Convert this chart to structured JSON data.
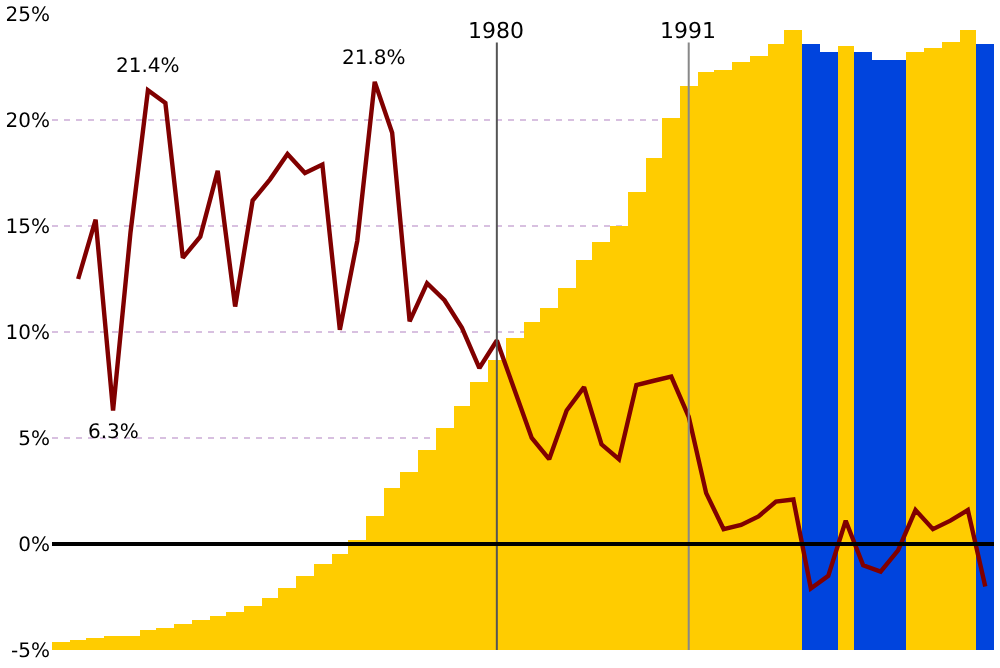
{
  "chart_data": {
    "type": "bar",
    "x": [
      1955,
      1956,
      1957,
      1958,
      1959,
      1960,
      1961,
      1962,
      1963,
      1964,
      1965,
      1966,
      1967,
      1968,
      1969,
      1970,
      1971,
      1972,
      1973,
      1974,
      1975,
      1976,
      1977,
      1978,
      1979,
      1980,
      1981,
      1982,
      1983,
      1984,
      1985,
      1986,
      1987,
      1988,
      1989,
      1990,
      1991,
      1992,
      1993,
      1994,
      1995,
      1996,
      1997,
      1998,
      1999,
      2000,
      2001,
      2002,
      2003,
      2004,
      2005,
      2006,
      2007,
      2008
    ],
    "series": [
      {
        "values": [
          0.4,
          0.5,
          0.6,
          0.7,
          0.7,
          0.9,
          1.0,
          1.2,
          1.4,
          1.6,
          1.8,
          2.1,
          2.5,
          2.9,
          3.5,
          4.1,
          4.5,
          5.2,
          6.3,
          7.6,
          8.4,
          9.4,
          10.5,
          11.5,
          12.6,
          13.7,
          14.7,
          15.5,
          16.1,
          17.1,
          18.4,
          19.2,
          20.0,
          21.6,
          23.2,
          25.1,
          26.6,
          27.3,
          27.4,
          27.7,
          28.0,
          28.6,
          29.2,
          28.6,
          28.2,
          28.5,
          28.2,
          27.8,
          27.8,
          28.2,
          28.4,
          28.7,
          29.2,
          28.6
        ],
        "base": [
          -5,
          -5,
          -5,
          -5,
          -5,
          -5,
          -5,
          -5,
          -5,
          -5,
          -5,
          -5,
          -5,
          -5,
          -5,
          -5,
          -5,
          -5,
          -5,
          -5,
          -5,
          -5,
          -5,
          -5,
          -5,
          -5,
          -5,
          -5,
          -5,
          -5,
          -5,
          -5,
          -5,
          -5,
          -5,
          -5,
          -5,
          -5,
          -5,
          -5,
          -5,
          -5,
          -5,
          -5,
          -5,
          -5,
          -5,
          -5,
          -5,
          -5,
          -5,
          -5,
          -5,
          -5
        ],
        "colors": [
          "#ffcc00",
          "#ffcc00",
          "#ffcc00",
          "#ffcc00",
          "#ffcc00",
          "#ffcc00",
          "#ffcc00",
          "#ffcc00",
          "#ffcc00",
          "#ffcc00",
          "#ffcc00",
          "#ffcc00",
          "#ffcc00",
          "#ffcc00",
          "#ffcc00",
          "#ffcc00",
          "#ffcc00",
          "#ffcc00",
          "#ffcc00",
          "#ffcc00",
          "#ffcc00",
          "#ffcc00",
          "#ffcc00",
          "#ffcc00",
          "#ffcc00",
          "#ffcc00",
          "#ffcc00",
          "#ffcc00",
          "#ffcc00",
          "#ffcc00",
          "#ffcc00",
          "#ffcc00",
          "#ffcc00",
          "#ffcc00",
          "#ffcc00",
          "#ffcc00",
          "#ffcc00",
          "#ffcc00",
          "#ffcc00",
          "#ffcc00",
          "#ffcc00",
          "#ffcc00",
          "#ffcc00",
          "#0044dd",
          "#0044dd",
          "#ffcc00",
          "#0044dd",
          "#0044dd",
          "#0044dd",
          "#ffcc00",
          "#ffcc00",
          "#ffcc00",
          "#ffcc00",
          "#0044dd"
        ]
      },
      {
        "type": "line",
        "color": "#800000",
        "x": [
          1956,
          1957,
          1958,
          1959,
          1960,
          1961,
          1962,
          1963,
          1964,
          1965,
          1966,
          1967,
          1968,
          1969,
          1970,
          1971,
          1972,
          1973,
          1974,
          1975,
          1976,
          1977,
          1978,
          1979,
          1980,
          1981,
          1982,
          1983,
          1984,
          1985,
          1986,
          1987,
          1988,
          1989,
          1990,
          1991,
          1992,
          1993,
          1994,
          1995,
          1996,
          1997,
          1998,
          1999,
          2000,
          2001,
          2002,
          2003,
          2004,
          2005,
          2006,
          2007,
          2008
        ],
        "values": [
          12.5,
          15.3,
          6.3,
          14.7,
          21.4,
          20.8,
          13.5,
          14.5,
          17.6,
          11.2,
          16.2,
          17.2,
          18.4,
          17.5,
          17.9,
          10.1,
          14.3,
          21.8,
          19.4,
          10.5,
          12.3,
          11.5,
          10.2,
          8.3,
          9.6,
          7.3,
          5.0,
          4.0,
          6.3,
          7.4,
          4.7,
          4.0,
          7.5,
          7.7,
          7.9,
          6.0,
          2.4,
          0.7,
          0.9,
          1.3,
          2.0,
          2.1,
          -2.1,
          -1.5,
          1.1,
          -1.0,
          -1.3,
          -0.3,
          1.6,
          0.7,
          1.1,
          1.6,
          -2.0
        ]
      }
    ],
    "xlim": [
      1954.5,
      2008.5
    ],
    "ylim": [
      -5,
      25
    ],
    "yticks": [
      {
        "value": -5,
        "label": "-5%"
      },
      {
        "value": 0,
        "label": "0%"
      },
      {
        "value": 5,
        "label": "5%"
      },
      {
        "value": 10,
        "label": "10%"
      },
      {
        "value": 15,
        "label": "15%"
      },
      {
        "value": 20,
        "label": "20%"
      },
      {
        "value": 25,
        "label": "25%"
      }
    ],
    "tick_labels": "y",
    "grid": "y",
    "marker": "none",
    "line_style": "solid",
    "ref_lines": [
      {
        "axis": "x",
        "value": 1980,
        "label": "1980",
        "color": "#555555"
      },
      {
        "axis": "x",
        "value": 1991,
        "label": "1991",
        "color": "#888888"
      },
      {
        "axis": "y",
        "value": 0,
        "color": "#000000"
      }
    ],
    "annotations": [
      {
        "text": "21.4%",
        "x": 1960,
        "y": 21.4
      },
      {
        "text": "6.3%",
        "x": 1958,
        "y": 6.3
      },
      {
        "text": "21.8%",
        "x": 1973,
        "y": 21.8
      }
    ]
  }
}
